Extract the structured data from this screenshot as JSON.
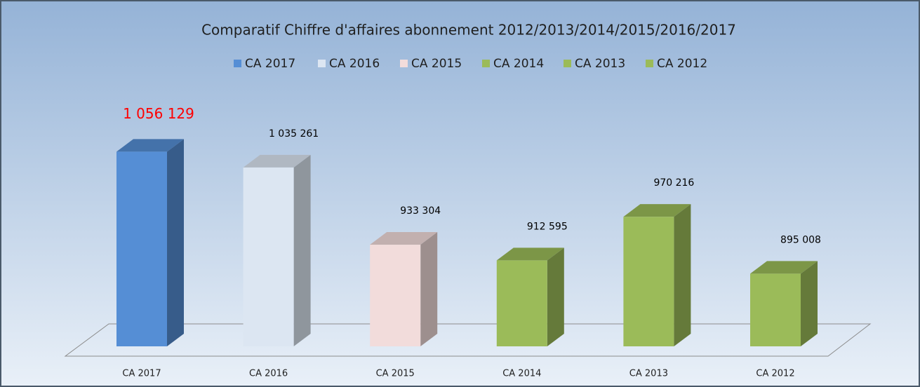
{
  "chart_data": {
    "type": "bar3d",
    "title": "Comparatif Chiffre d'affaires abonnement 2012/2013/2014/2015/2016/2017",
    "categories": [
      "CA 2017",
      "CA 2016",
      "CA 2015",
      "CA 2014",
      "CA 2013",
      "CA 2012"
    ],
    "values": [
      1056129,
      1035261,
      933304,
      912595,
      970216,
      895008
    ],
    "value_labels": [
      "1 056 129",
      "1 035 261",
      "933 304",
      "912 595",
      "970 216",
      "895 008"
    ],
    "colors": [
      "#558ed5",
      "#dce6f2",
      "#f2dcdb",
      "#9bbb59",
      "#9bbb59",
      "#9bbb59"
    ],
    "label_colors": [
      "#ff0000",
      "#000000",
      "#000000",
      "#000000",
      "#000000",
      "#000000"
    ],
    "ylim": [
      800000,
      1100000
    ]
  }
}
